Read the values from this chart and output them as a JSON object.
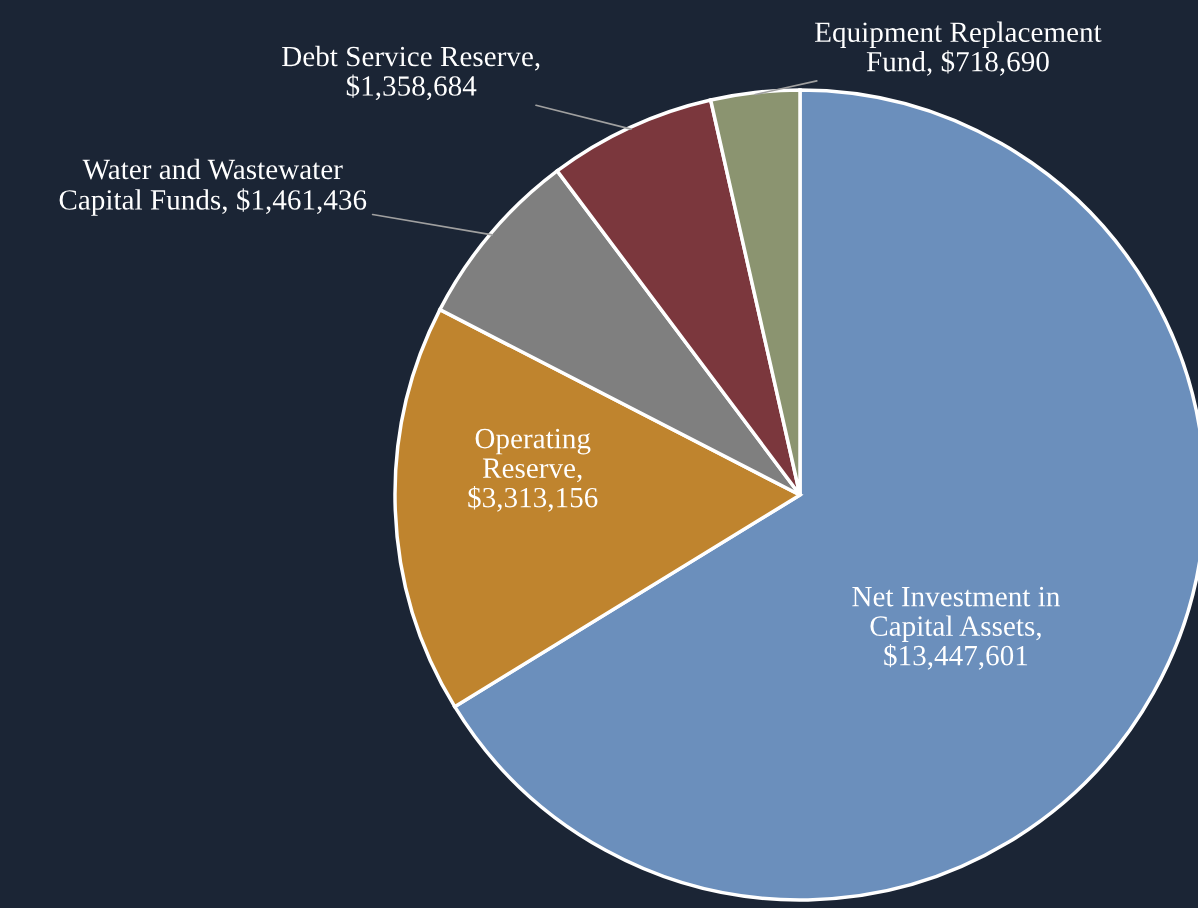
{
  "chart_data": {
    "type": "pie",
    "categories": [
      "Net Investment in\nCapital Assets,\n$13,447,601",
      "Operating\nReserve,\n$3,313,156",
      "Water and Wastewater\nCapital Funds, $1,461,436",
      "Debt Service Reserve,\n$1,358,684",
      "Equipment Replacement\nFund, $718,690"
    ],
    "values": [
      13447601,
      3313156,
      1461436,
      1358684,
      718690
    ],
    "colors": [
      "#6b8fbc",
      "#bf842e",
      "#7f7f7f",
      "#7b373d",
      "#8b9470"
    ]
  }
}
